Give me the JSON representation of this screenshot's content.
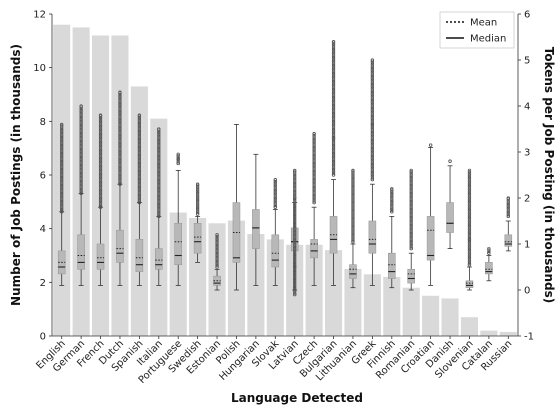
{
  "chart_data": {
    "type": "bar",
    "overlay": "box",
    "xlabel": "Language Detected",
    "ylabel": "Number of Job Postings (in thousands)",
    "y2label": "Tokens per Job Posting (in thousands)",
    "ylim": [
      0,
      12
    ],
    "y2lim": [
      -1,
      6
    ],
    "yticks": [
      0,
      2,
      4,
      6,
      8,
      10,
      12
    ],
    "y2ticks": [
      -1,
      0,
      1,
      2,
      3,
      4,
      5,
      6
    ],
    "legend": {
      "placement": "top-right",
      "entries": [
        "Mean",
        "Median"
      ]
    },
    "colors": {
      "bar": "#d9d9d9",
      "box": "#b8b8b8",
      "whisker": "#333333",
      "flier": "#555555"
    },
    "categories": [
      "English",
      "German",
      "French",
      "Dutch",
      "Spanish",
      "Italian",
      "Portuguese",
      "Swedish",
      "Estonian",
      "Polish",
      "Hungarian",
      "Slovak",
      "Latvian",
      "Czech",
      "Bulgarian",
      "Lithuanian",
      "Greek",
      "Finnish",
      "Romanian",
      "Croatian",
      "Danish",
      "Slovenian",
      "Catalan",
      "Russian"
    ],
    "values": [
      11.6,
      11.5,
      11.2,
      11.2,
      9.3,
      8.1,
      4.6,
      4.4,
      4.2,
      4.3,
      3.8,
      3.6,
      3.4,
      3.4,
      3.2,
      2.5,
      2.3,
      2.2,
      1.8,
      1.5,
      1.4,
      0.7,
      0.2,
      0.15
    ],
    "boxes": [
      {
        "whislo": 0.1,
        "q1": 0.35,
        "med": 0.5,
        "mean": 0.6,
        "q3": 0.85,
        "whishi": 1.7,
        "fliers": [
          1.7,
          3.6
        ]
      },
      {
        "whislo": 0.1,
        "q1": 0.45,
        "med": 0.6,
        "mean": 0.75,
        "q3": 1.2,
        "whishi": 2.1,
        "fliers": [
          2.1,
          4.0
        ]
      },
      {
        "whislo": 0.1,
        "q1": 0.45,
        "med": 0.6,
        "mean": 0.7,
        "q3": 1.0,
        "whishi": 1.8,
        "fliers": [
          1.8,
          3.8
        ]
      },
      {
        "whislo": 0.1,
        "q1": 0.6,
        "med": 0.8,
        "mean": 0.9,
        "q3": 1.3,
        "whishi": 2.3,
        "fliers": [
          2.3,
          4.3
        ]
      },
      {
        "whislo": 0.1,
        "q1": 0.4,
        "med": 0.55,
        "mean": 0.7,
        "q3": 1.1,
        "whishi": 1.9,
        "fliers": [
          1.9,
          3.8
        ]
      },
      {
        "whislo": 0.1,
        "q1": 0.45,
        "med": 0.55,
        "mean": 0.65,
        "q3": 0.9,
        "whishi": 1.6,
        "fliers": [
          1.6,
          3.5
        ]
      },
      {
        "whislo": 0.1,
        "q1": 0.55,
        "med": 0.75,
        "mean": 1.05,
        "q3": 1.45,
        "whishi": 2.6,
        "fliers": [
          2.75,
          2.85,
          2.95
        ]
      },
      {
        "whislo": 0.6,
        "q1": 0.8,
        "med": 1.05,
        "mean": 1.15,
        "q3": 1.45,
        "whishi": 1.6,
        "fliers": [
          1.65,
          2.3
        ]
      },
      {
        "whislo": 0.0,
        "q1": 0.1,
        "med": 0.15,
        "mean": 0.2,
        "q3": 0.3,
        "whishi": 0.45,
        "fliers": [
          0.5,
          1.2
        ]
      },
      {
        "whislo": 0.0,
        "q1": 0.6,
        "med": 0.7,
        "mean": 1.25,
        "q3": 1.9,
        "whishi": 3.6,
        "fliers": []
      },
      {
        "whislo": 0.1,
        "q1": 0.9,
        "med": 1.35,
        "mean": 1.35,
        "q3": 1.75,
        "whishi": 2.95,
        "fliers": []
      },
      {
        "whislo": 0.1,
        "q1": 0.5,
        "med": 0.65,
        "mean": 0.8,
        "q3": 1.2,
        "whishi": 1.75,
        "fliers": [
          1.8,
          2.4
        ]
      },
      {
        "whislo": 0.0,
        "q1": 0.85,
        "med": 1.05,
        "mean": 1.05,
        "q3": 1.35,
        "whishi": 1.9,
        "fliers": [
          -0.1,
          0.5,
          2.0,
          2.6
        ]
      },
      {
        "whislo": 0.1,
        "q1": 0.7,
        "med": 0.85,
        "mean": 1.0,
        "q3": 1.1,
        "whishi": 1.8,
        "fliers": [
          1.9,
          3.4
        ]
      },
      {
        "whislo": 0.1,
        "q1": 0.8,
        "med": 1.1,
        "mean": 1.2,
        "q3": 1.6,
        "whishi": 2.4,
        "fliers": [
          2.5,
          3.3,
          5.4
        ]
      },
      {
        "whislo": 0.05,
        "q1": 0.25,
        "med": 0.35,
        "mean": 0.45,
        "q3": 0.55,
        "whishi": 1.0,
        "fliers": [
          1.05,
          2.6
        ]
      },
      {
        "whislo": 0.1,
        "q1": 0.8,
        "med": 1.0,
        "mean": 1.1,
        "q3": 1.5,
        "whishi": 2.3,
        "fliers": [
          2.4,
          3.6,
          5.0
        ]
      },
      {
        "whislo": 0.05,
        "q1": 0.25,
        "med": 0.4,
        "mean": 0.55,
        "q3": 0.8,
        "whishi": 1.6,
        "fliers": [
          1.7,
          2.2
        ]
      },
      {
        "whislo": 0.0,
        "q1": 0.15,
        "med": 0.25,
        "mean": 0.35,
        "q3": 0.45,
        "whishi": 0.8,
        "fliers": [
          0.9,
          2.6
        ]
      },
      {
        "whislo": 0.1,
        "q1": 0.65,
        "med": 0.75,
        "mean": 1.3,
        "q3": 1.6,
        "whishi": 3.1,
        "fliers": [
          3.15
        ]
      },
      {
        "whislo": 0.9,
        "q1": 1.25,
        "med": 1.45,
        "mean": 1.45,
        "q3": 1.9,
        "whishi": 2.7,
        "fliers": [
          2.8
        ]
      },
      {
        "whislo": 0.0,
        "q1": 0.05,
        "med": 0.1,
        "mean": 0.15,
        "q3": 0.2,
        "whishi": 0.5,
        "fliers": [
          0.55,
          1.1,
          2.6
        ]
      },
      {
        "whislo": 0.2,
        "q1": 0.35,
        "med": 0.4,
        "mean": 0.45,
        "q3": 0.6,
        "whishi": 0.75,
        "fliers": [
          0.8,
          0.9
        ]
      },
      {
        "whislo": 0.85,
        "q1": 0.95,
        "med": 1.0,
        "mean": 1.05,
        "q3": 1.2,
        "whishi": 1.5,
        "fliers": [
          1.6,
          2.0
        ]
      }
    ]
  }
}
